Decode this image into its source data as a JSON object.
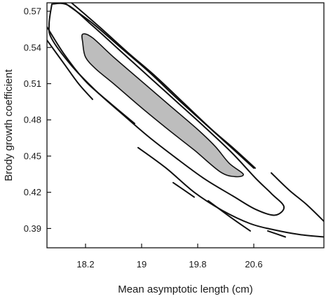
{
  "chart_data": {
    "type": "contour",
    "xlabel": "Mean asymptotic length (cm)",
    "ylabel": "Brody growth coefficient",
    "xlim": [
      17.65,
      21.6
    ],
    "ylim": [
      0.374,
      0.577
    ],
    "xticks": [
      18.2,
      19,
      19.8,
      20.6
    ],
    "xtick_labels": [
      "18.2",
      "19",
      "19.8",
      "20.6"
    ],
    "yticks": [
      0.39,
      0.42,
      0.45,
      0.48,
      0.51,
      0.54,
      0.57
    ],
    "ytick_labels": [
      "0.39",
      "0.42",
      "0.45",
      "0.48",
      "0.51",
      "0.54",
      "0.57"
    ],
    "grid": false,
    "legend": false,
    "fill_color": "#bdbdbd",
    "line_color": "#111111",
    "contours": [
      {
        "level": "inner",
        "filled": true,
        "closed": true,
        "points": [
          [
            18.16,
            0.551
          ],
          [
            18.3,
            0.548
          ],
          [
            18.6,
            0.532
          ],
          [
            19.0,
            0.512
          ],
          [
            19.4,
            0.492
          ],
          [
            19.8,
            0.472
          ],
          [
            20.05,
            0.458
          ],
          [
            20.25,
            0.444
          ],
          [
            20.45,
            0.435
          ],
          [
            20.33,
            0.433
          ],
          [
            20.12,
            0.437
          ],
          [
            19.75,
            0.455
          ],
          [
            19.4,
            0.471
          ],
          [
            19.0,
            0.49
          ],
          [
            18.6,
            0.51
          ],
          [
            18.35,
            0.522
          ],
          [
            18.2,
            0.532
          ],
          [
            18.16,
            0.544
          ]
        ]
      },
      {
        "level": "outer",
        "filled": false,
        "closed": false,
        "points": [
          [
            17.72,
            0.576
          ],
          [
            17.95,
            0.575
          ],
          [
            18.3,
            0.558
          ],
          [
            18.7,
            0.537
          ],
          [
            19.1,
            0.516
          ],
          [
            19.5,
            0.495
          ],
          [
            19.9,
            0.474
          ],
          [
            20.3,
            0.452
          ],
          [
            20.62,
            0.432
          ],
          [
            20.85,
            0.419
          ],
          [
            21.03,
            0.408
          ],
          [
            20.9,
            0.401
          ],
          [
            20.62,
            0.406
          ],
          [
            20.3,
            0.417
          ],
          [
            19.9,
            0.431
          ],
          [
            19.5,
            0.448
          ],
          [
            19.1,
            0.466
          ],
          [
            18.7,
            0.486
          ],
          [
            18.35,
            0.504
          ],
          [
            18.0,
            0.525
          ],
          [
            17.72,
            0.547
          ],
          [
            17.68,
            0.559
          ],
          [
            17.72,
            0.576
          ]
        ]
      },
      {
        "level": "upper-band-1",
        "filled": false,
        "closed": false,
        "points": [
          [
            17.9,
            0.577
          ],
          [
            18.3,
            0.56
          ],
          [
            18.7,
            0.54
          ],
          [
            19.1,
            0.52
          ],
          [
            19.5,
            0.498
          ],
          [
            19.9,
            0.477
          ],
          [
            20.3,
            0.456
          ],
          [
            20.6,
            0.44
          ]
        ]
      },
      {
        "level": "upper-band-2",
        "filled": false,
        "closed": false,
        "points": [
          [
            18.0,
            0.577
          ],
          [
            18.4,
            0.557
          ],
          [
            18.8,
            0.536
          ],
          [
            19.2,
            0.516
          ],
          [
            19.6,
            0.494
          ],
          [
            20.0,
            0.472
          ],
          [
            20.3,
            0.457
          ],
          [
            20.62,
            0.44
          ]
        ]
      },
      {
        "level": "upper-dash",
        "filled": false,
        "closed": false,
        "points": [
          [
            20.85,
            0.436
          ],
          [
            21.1,
            0.422
          ],
          [
            21.35,
            0.41
          ],
          [
            21.6,
            0.396
          ]
        ]
      },
      {
        "level": "lower-band-1",
        "filled": false,
        "closed": false,
        "points": [
          [
            17.65,
            0.557
          ],
          [
            17.9,
            0.534
          ],
          [
            18.2,
            0.512
          ],
          [
            18.55,
            0.494
          ],
          [
            18.9,
            0.477
          ]
        ]
      },
      {
        "level": "lower-band-2",
        "filled": false,
        "closed": false,
        "points": [
          [
            17.65,
            0.546
          ],
          [
            17.9,
            0.526
          ],
          [
            18.1,
            0.51
          ],
          [
            18.3,
            0.497
          ]
        ]
      },
      {
        "level": "lower-mid",
        "filled": false,
        "closed": false,
        "points": [
          [
            18.95,
            0.457
          ],
          [
            19.35,
            0.44
          ],
          [
            19.75,
            0.42
          ],
          [
            20.15,
            0.405
          ],
          [
            20.55,
            0.394
          ],
          [
            20.88,
            0.389
          ],
          [
            21.25,
            0.385
          ],
          [
            21.6,
            0.383
          ]
        ]
      },
      {
        "level": "lower-dash-1",
        "filled": false,
        "closed": false,
        "points": [
          [
            19.45,
            0.428
          ],
          [
            19.75,
            0.416
          ]
        ]
      },
      {
        "level": "lower-dash-2",
        "filled": false,
        "closed": false,
        "points": [
          [
            19.95,
            0.413
          ],
          [
            20.3,
            0.398
          ],
          [
            20.55,
            0.388
          ]
        ]
      },
      {
        "level": "lower-dash-3",
        "filled": false,
        "closed": false,
        "points": [
          [
            20.8,
            0.388
          ],
          [
            21.05,
            0.383
          ]
        ]
      }
    ]
  }
}
